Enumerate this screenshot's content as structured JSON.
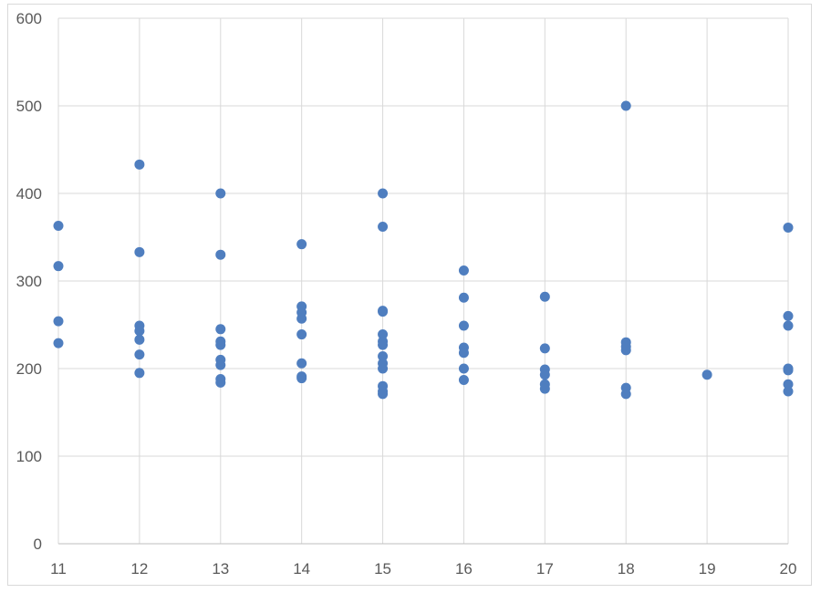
{
  "chart_data": {
    "type": "scatter",
    "title": "",
    "xlabel": "",
    "ylabel": "",
    "xlim": [
      11,
      20
    ],
    "ylim": [
      0,
      600
    ],
    "x_ticks": [
      11,
      12,
      13,
      14,
      15,
      16,
      17,
      18,
      19,
      20
    ],
    "y_ticks": [
      0,
      100,
      200,
      300,
      400,
      500,
      600
    ],
    "grid": "both",
    "legend": "none",
    "marker_color": "#4F7EBF",
    "series": [
      {
        "points": [
          [
            11,
            363
          ],
          [
            11,
            317
          ],
          [
            11,
            254
          ],
          [
            11,
            229
          ],
          [
            12,
            433
          ],
          [
            12,
            333
          ],
          [
            12,
            249
          ],
          [
            12,
            243
          ],
          [
            12,
            233
          ],
          [
            12,
            216
          ],
          [
            12,
            195
          ],
          [
            13,
            400
          ],
          [
            13,
            330
          ],
          [
            13,
            245
          ],
          [
            13,
            231
          ],
          [
            13,
            227
          ],
          [
            13,
            210
          ],
          [
            13,
            204
          ],
          [
            13,
            188
          ],
          [
            13,
            184
          ],
          [
            14,
            342
          ],
          [
            14,
            271
          ],
          [
            14,
            264
          ],
          [
            14,
            257
          ],
          [
            14,
            239
          ],
          [
            14,
            206
          ],
          [
            14,
            191
          ],
          [
            14,
            189
          ],
          [
            15,
            400
          ],
          [
            15,
            362
          ],
          [
            15,
            266
          ],
          [
            15,
            265
          ],
          [
            15,
            239
          ],
          [
            15,
            231
          ],
          [
            15,
            227
          ],
          [
            15,
            214
          ],
          [
            15,
            206
          ],
          [
            15,
            200
          ],
          [
            15,
            180
          ],
          [
            15,
            174
          ],
          [
            15,
            171
          ],
          [
            16,
            312
          ],
          [
            16,
            281
          ],
          [
            16,
            249
          ],
          [
            16,
            224
          ],
          [
            16,
            218
          ],
          [
            16,
            200
          ],
          [
            16,
            187
          ],
          [
            17,
            282
          ],
          [
            17,
            223
          ],
          [
            17,
            199
          ],
          [
            17,
            193
          ],
          [
            17,
            182
          ],
          [
            17,
            177
          ],
          [
            18,
            500
          ],
          [
            18,
            230
          ],
          [
            18,
            225
          ],
          [
            18,
            221
          ],
          [
            18,
            178
          ],
          [
            18,
            171
          ],
          [
            19,
            193
          ],
          [
            20,
            361
          ],
          [
            20,
            260
          ],
          [
            20,
            249
          ],
          [
            20,
            200
          ],
          [
            20,
            198
          ],
          [
            20,
            182
          ],
          [
            20,
            174
          ]
        ]
      }
    ]
  }
}
